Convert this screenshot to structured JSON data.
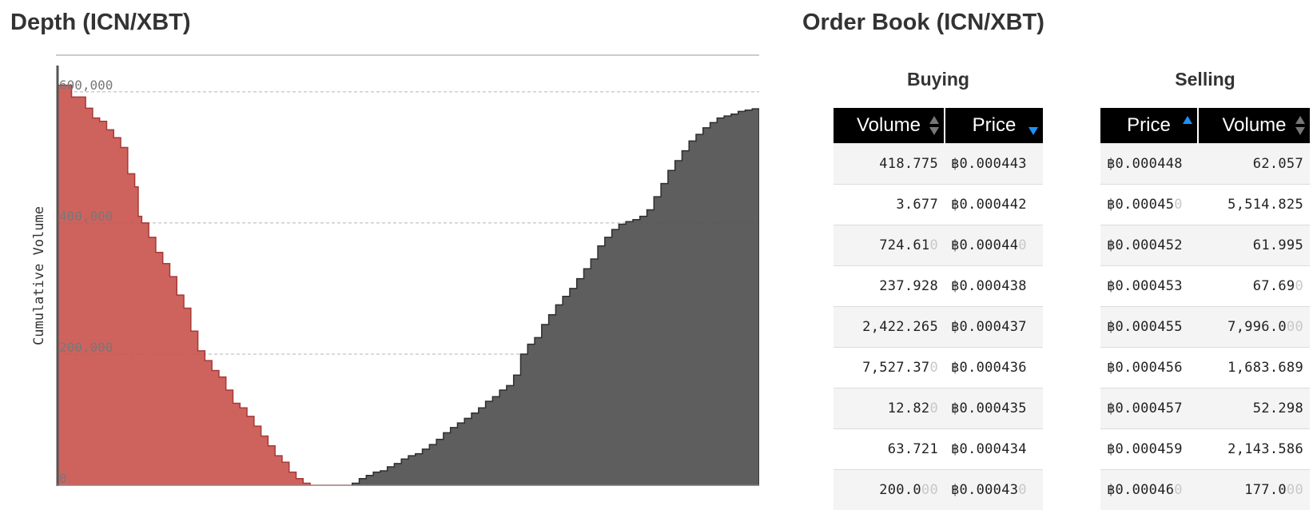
{
  "depth": {
    "title": "Depth (ICN/XBT)",
    "chart_data": {
      "type": "area",
      "title": "Depth (ICN/XBT)",
      "ylabel": "Cumulative Volume",
      "xlabel": "",
      "ylim": [
        0,
        640000
      ],
      "y_ticks": [
        "0",
        "200,000",
        "400,000",
        "600,000"
      ],
      "y_tick_values": [
        0,
        200000,
        400000,
        600000
      ],
      "grid": true,
      "series": [
        {
          "color": "#c9524c",
          "x": [
            0.0,
            0.02,
            0.04,
            0.05,
            0.06,
            0.07,
            0.08,
            0.09,
            0.1,
            0.11,
            0.115,
            0.12,
            0.13,
            0.14,
            0.15,
            0.16,
            0.17,
            0.18,
            0.19,
            0.2,
            0.21,
            0.22,
            0.23,
            0.24,
            0.25,
            0.26,
            0.27,
            0.28,
            0.29,
            0.3,
            0.31,
            0.32,
            0.33,
            0.34,
            0.35,
            0.36,
            0.37,
            0.38,
            0.39,
            0.4,
            0.41,
            0.42
          ],
          "y": [
            610000,
            592000,
            575000,
            560000,
            555000,
            542000,
            530000,
            515000,
            475000,
            455000,
            410000,
            400000,
            378000,
            355000,
            338000,
            318000,
            290000,
            270000,
            235000,
            205000,
            190000,
            175000,
            165000,
            145000,
            125000,
            118000,
            105000,
            90000,
            75000,
            60000,
            45000,
            35000,
            20000,
            10000,
            3000,
            0,
            0,
            0,
            0,
            0,
            0,
            0
          ]
        },
        {
          "color": "#555555",
          "x": [
            0.42,
            0.43,
            0.44,
            0.45,
            0.46,
            0.47,
            0.48,
            0.49,
            0.5,
            0.51,
            0.52,
            0.53,
            0.54,
            0.55,
            0.56,
            0.57,
            0.58,
            0.59,
            0.6,
            0.61,
            0.62,
            0.63,
            0.64,
            0.65,
            0.66,
            0.67,
            0.68,
            0.69,
            0.7,
            0.71,
            0.72,
            0.73,
            0.74,
            0.75,
            0.76,
            0.77,
            0.78,
            0.79,
            0.8,
            0.81,
            0.82,
            0.83,
            0.84,
            0.85,
            0.86,
            0.87,
            0.88,
            0.89,
            0.9,
            0.91,
            0.92,
            0.93,
            0.94,
            0.95,
            0.96,
            0.97,
            0.98,
            0.99,
            1.0
          ],
          "y": [
            3000,
            10000,
            15000,
            20000,
            22000,
            28000,
            33000,
            40000,
            45000,
            48000,
            55000,
            62000,
            70000,
            80000,
            88000,
            95000,
            102000,
            110000,
            118000,
            128000,
            135000,
            145000,
            152000,
            168000,
            200000,
            215000,
            225000,
            245000,
            260000,
            275000,
            288000,
            300000,
            315000,
            330000,
            345000,
            365000,
            378000,
            390000,
            398000,
            402000,
            405000,
            410000,
            420000,
            440000,
            460000,
            480000,
            495000,
            510000,
            525000,
            535000,
            545000,
            553000,
            560000,
            563000,
            566000,
            570000,
            572000,
            574000,
            575000
          ]
        }
      ]
    }
  },
  "orderbook": {
    "title": "Order Book (ICN/XBT)",
    "buying": {
      "title": "Buying",
      "headers": [
        "Volume",
        "Price"
      ],
      "rows": [
        {
          "volume": "418.775",
          "volume_tz": "",
          "price": "฿0.000443",
          "price_tz": ""
        },
        {
          "volume": "3.677",
          "volume_tz": "",
          "price": "฿0.000442",
          "price_tz": ""
        },
        {
          "volume": "724.61",
          "volume_tz": "0",
          "price": "฿0.00044",
          "price_tz": "0"
        },
        {
          "volume": "237.928",
          "volume_tz": "",
          "price": "฿0.000438",
          "price_tz": ""
        },
        {
          "volume": "2,422.265",
          "volume_tz": "",
          "price": "฿0.000437",
          "price_tz": ""
        },
        {
          "volume": "7,527.37",
          "volume_tz": "0",
          "price": "฿0.000436",
          "price_tz": ""
        },
        {
          "volume": "12.82",
          "volume_tz": "0",
          "price": "฿0.000435",
          "price_tz": ""
        },
        {
          "volume": "63.721",
          "volume_tz": "",
          "price": "฿0.000434",
          "price_tz": ""
        },
        {
          "volume": "200.0",
          "volume_tz": "00",
          "price": "฿0.00043",
          "price_tz": "0"
        }
      ]
    },
    "selling": {
      "title": "Selling",
      "headers": [
        "Price",
        "Volume"
      ],
      "rows": [
        {
          "price": "฿0.000448",
          "price_tz": "",
          "volume": "62.057",
          "volume_tz": ""
        },
        {
          "price": "฿0.00045",
          "price_tz": "0",
          "volume": "5,514.825",
          "volume_tz": ""
        },
        {
          "price": "฿0.000452",
          "price_tz": "",
          "volume": "61.995",
          "volume_tz": ""
        },
        {
          "price": "฿0.000453",
          "price_tz": "",
          "volume": "67.69",
          "volume_tz": "0"
        },
        {
          "price": "฿0.000455",
          "price_tz": "",
          "volume": "7,996.0",
          "volume_tz": "00"
        },
        {
          "price": "฿0.000456",
          "price_tz": "",
          "volume": "1,683.689",
          "volume_tz": ""
        },
        {
          "price": "฿0.000457",
          "price_tz": "",
          "volume": "52.298",
          "volume_tz": ""
        },
        {
          "price": "฿0.000459",
          "price_tz": "",
          "volume": "2,143.586",
          "volume_tz": ""
        },
        {
          "price": "฿0.00046",
          "price_tz": "0",
          "volume": "177.0",
          "volume_tz": "00"
        }
      ]
    },
    "sort_colors": {
      "active": "#1e90ff",
      "inactive": "#777777"
    }
  }
}
